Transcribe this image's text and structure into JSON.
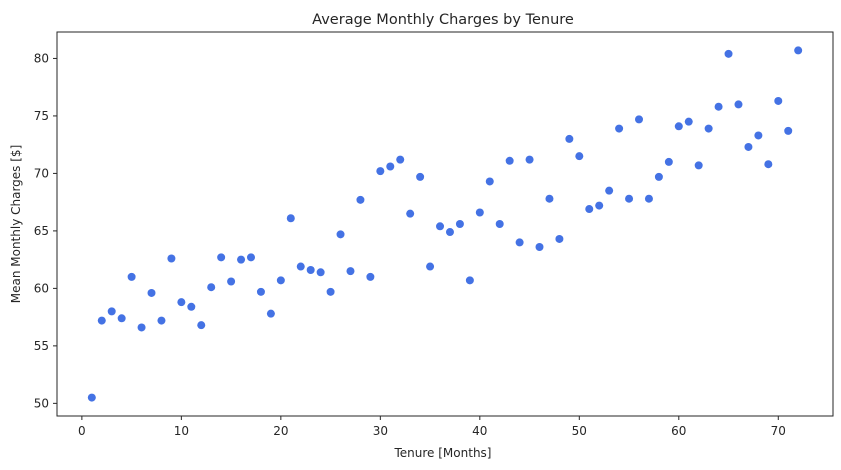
{
  "chart_data": {
    "type": "scatter",
    "title": "Average Monthly Charges by Tenure",
    "xlabel": "Tenure [Months]",
    "ylabel": "Mean Monthly Charges [$]",
    "xlim": [
      -2.5,
      75.5
    ],
    "ylim": [
      48.9,
      82.3
    ],
    "xticks": [
      0,
      10,
      20,
      30,
      40,
      50,
      60,
      70
    ],
    "yticks": [
      50,
      55,
      60,
      65,
      70,
      75,
      80
    ],
    "grid": false,
    "marker_color": "#4472e4",
    "points": [
      {
        "x": 1,
        "y": 50.5
      },
      {
        "x": 2,
        "y": 57.2
      },
      {
        "x": 3,
        "y": 58.0
      },
      {
        "x": 4,
        "y": 57.4
      },
      {
        "x": 5,
        "y": 61.0
      },
      {
        "x": 6,
        "y": 56.6
      },
      {
        "x": 7,
        "y": 59.6
      },
      {
        "x": 8,
        "y": 57.2
      },
      {
        "x": 9,
        "y": 62.6
      },
      {
        "x": 10,
        "y": 58.8
      },
      {
        "x": 11,
        "y": 58.4
      },
      {
        "x": 12,
        "y": 56.8
      },
      {
        "x": 13,
        "y": 60.1
      },
      {
        "x": 14,
        "y": 62.7
      },
      {
        "x": 15,
        "y": 60.6
      },
      {
        "x": 16,
        "y": 62.5
      },
      {
        "x": 17,
        "y": 62.7
      },
      {
        "x": 18,
        "y": 59.7
      },
      {
        "x": 19,
        "y": 57.8
      },
      {
        "x": 20,
        "y": 60.7
      },
      {
        "x": 21,
        "y": 66.1
      },
      {
        "x": 22,
        "y": 61.9
      },
      {
        "x": 23,
        "y": 61.6
      },
      {
        "x": 24,
        "y": 61.4
      },
      {
        "x": 25,
        "y": 59.7
      },
      {
        "x": 26,
        "y": 64.7
      },
      {
        "x": 27,
        "y": 61.5
      },
      {
        "x": 28,
        "y": 67.7
      },
      {
        "x": 29,
        "y": 61.0
      },
      {
        "x": 30,
        "y": 70.2
      },
      {
        "x": 31,
        "y": 70.6
      },
      {
        "x": 32,
        "y": 71.2
      },
      {
        "x": 33,
        "y": 66.5
      },
      {
        "x": 34,
        "y": 69.7
      },
      {
        "x": 35,
        "y": 61.9
      },
      {
        "x": 36,
        "y": 65.4
      },
      {
        "x": 37,
        "y": 64.9
      },
      {
        "x": 38,
        "y": 65.6
      },
      {
        "x": 39,
        "y": 60.7
      },
      {
        "x": 40,
        "y": 66.6
      },
      {
        "x": 41,
        "y": 69.3
      },
      {
        "x": 42,
        "y": 65.6
      },
      {
        "x": 43,
        "y": 71.1
      },
      {
        "x": 44,
        "y": 64.0
      },
      {
        "x": 45,
        "y": 71.2
      },
      {
        "x": 46,
        "y": 63.6
      },
      {
        "x": 47,
        "y": 67.8
      },
      {
        "x": 48,
        "y": 64.3
      },
      {
        "x": 49,
        "y": 73.0
      },
      {
        "x": 50,
        "y": 71.5
      },
      {
        "x": 51,
        "y": 66.9
      },
      {
        "x": 52,
        "y": 67.2
      },
      {
        "x": 53,
        "y": 68.5
      },
      {
        "x": 54,
        "y": 73.9
      },
      {
        "x": 55,
        "y": 67.8
      },
      {
        "x": 56,
        "y": 74.7
      },
      {
        "x": 57,
        "y": 67.8
      },
      {
        "x": 58,
        "y": 69.7
      },
      {
        "x": 59,
        "y": 71.0
      },
      {
        "x": 60,
        "y": 74.1
      },
      {
        "x": 61,
        "y": 74.5
      },
      {
        "x": 62,
        "y": 70.7
      },
      {
        "x": 63,
        "y": 73.9
      },
      {
        "x": 64,
        "y": 75.8
      },
      {
        "x": 65,
        "y": 80.4
      },
      {
        "x": 66,
        "y": 76.0
      },
      {
        "x": 67,
        "y": 72.3
      },
      {
        "x": 68,
        "y": 73.3
      },
      {
        "x": 69,
        "y": 70.8
      },
      {
        "x": 70,
        "y": 76.3
      },
      {
        "x": 71,
        "y": 73.7
      },
      {
        "x": 72,
        "y": 80.7
      }
    ]
  }
}
